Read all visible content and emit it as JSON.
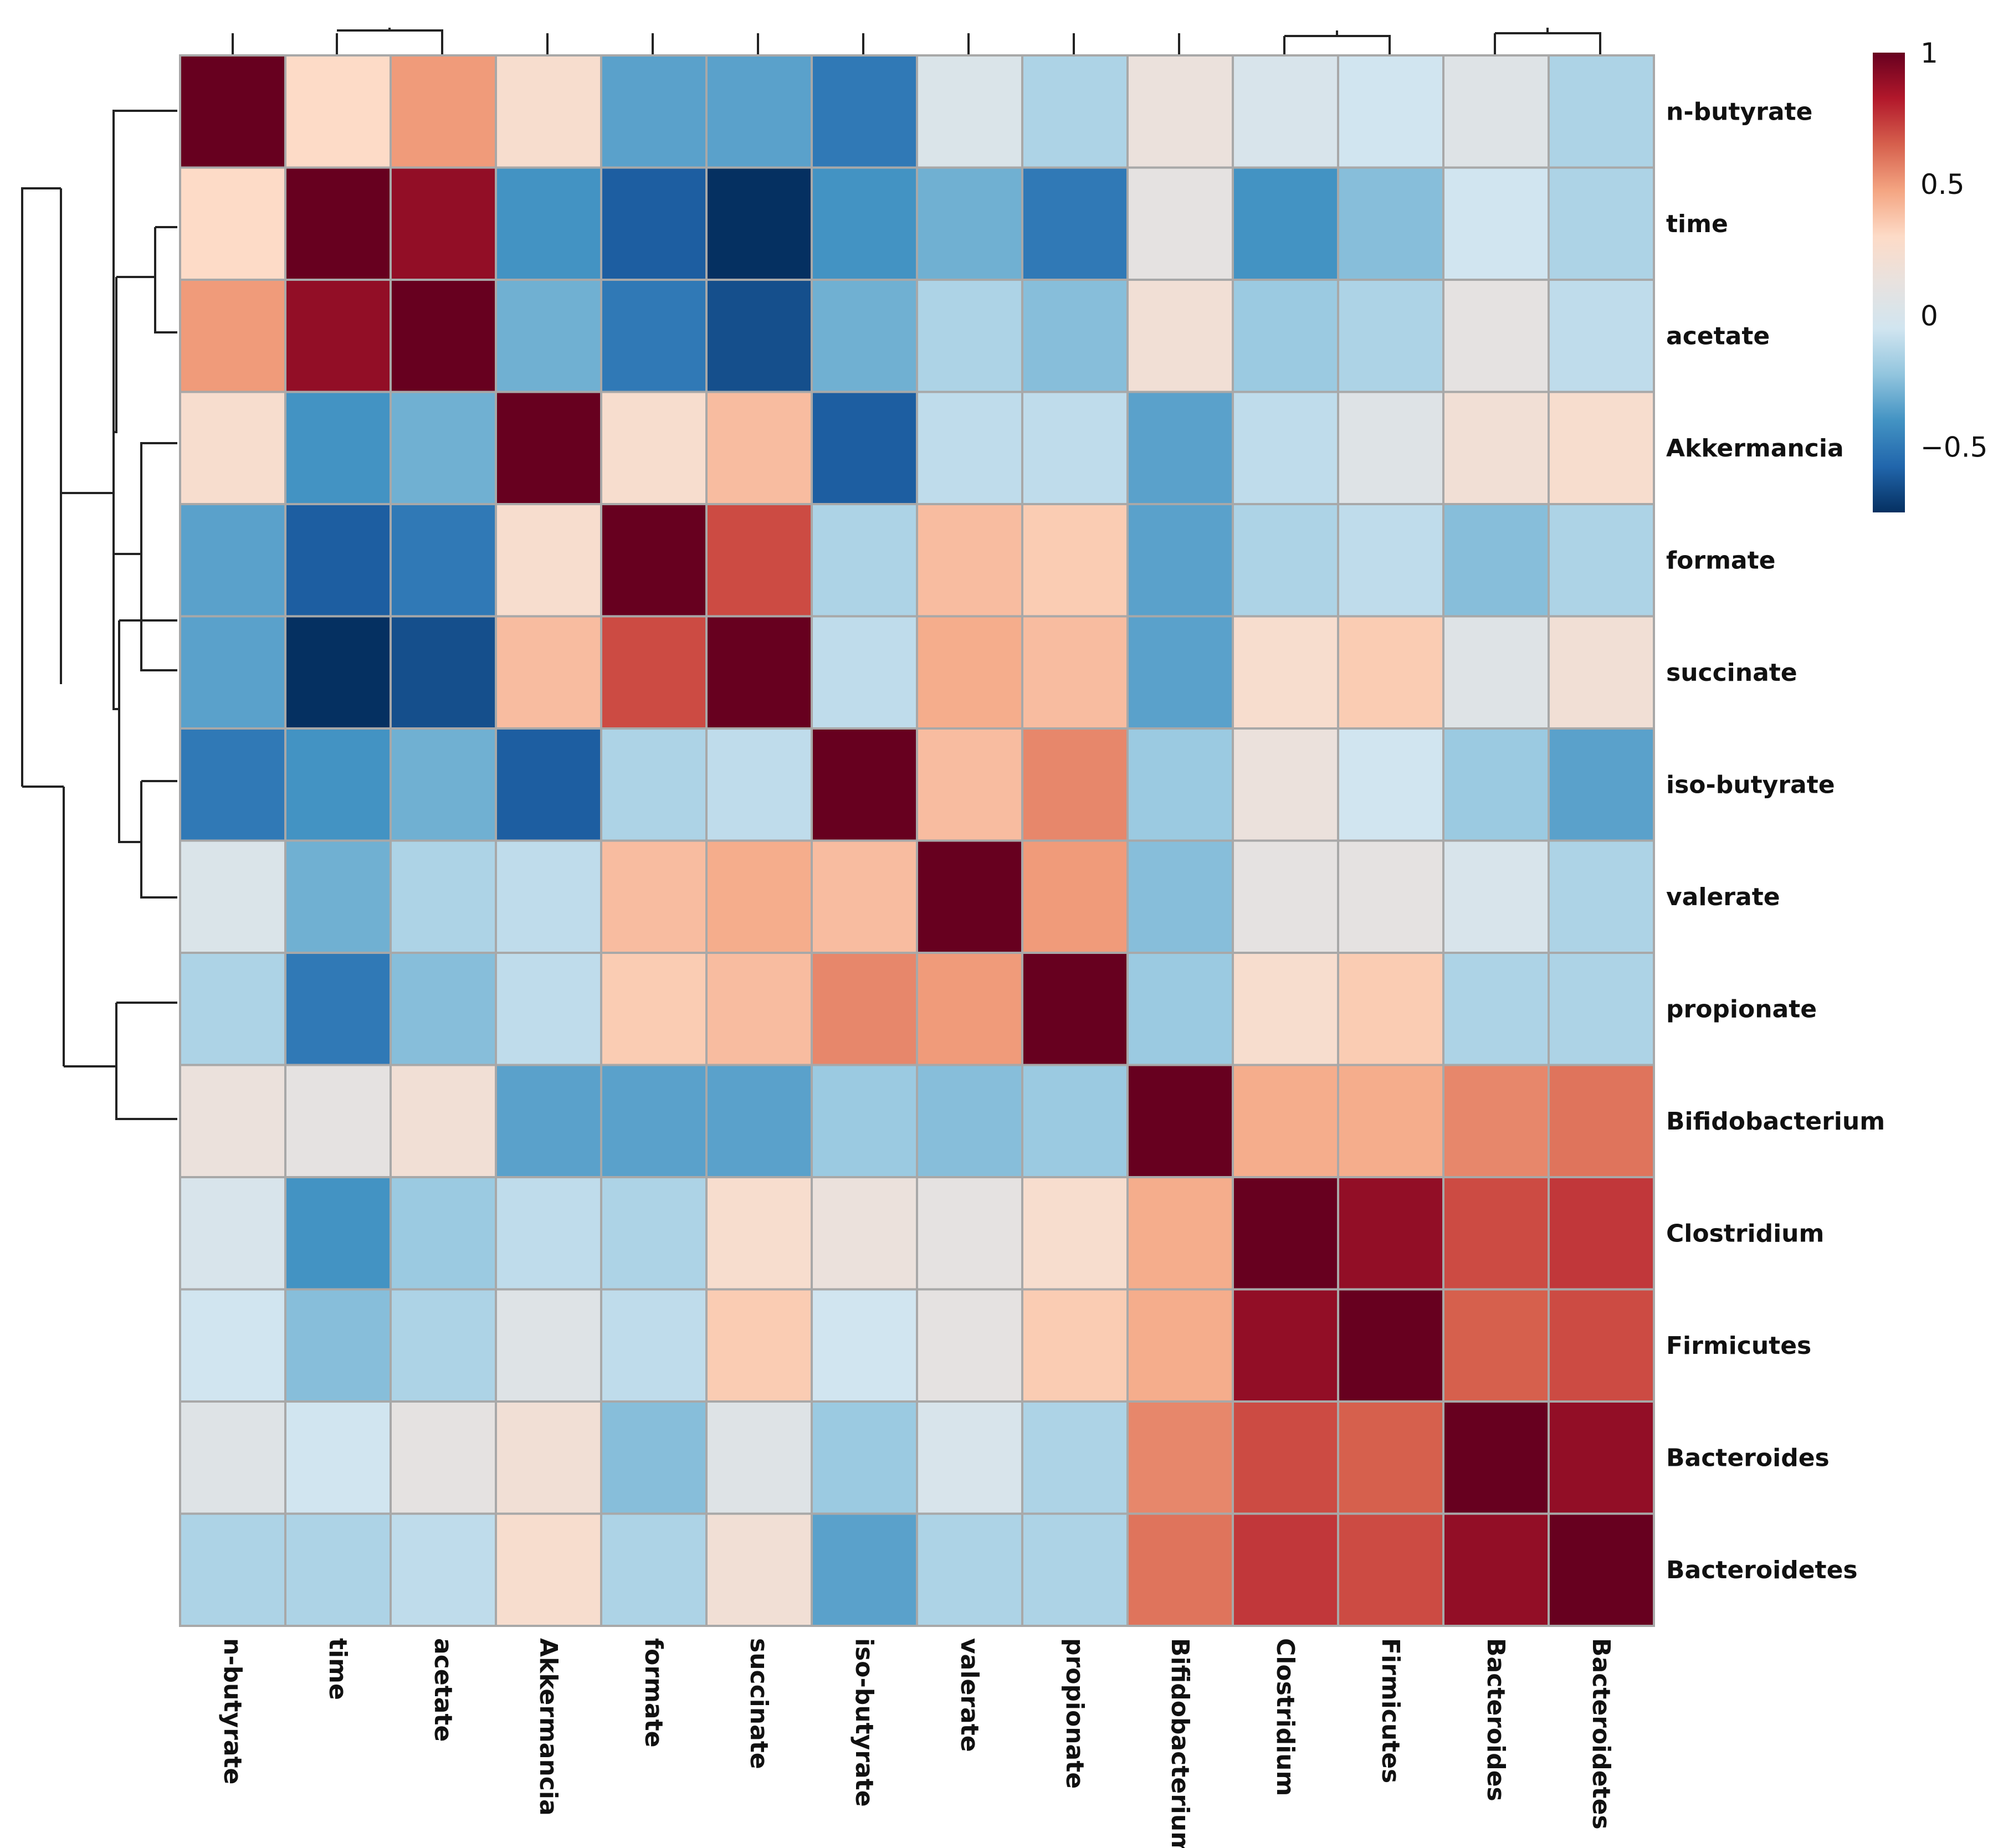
{
  "chart_data": {
    "type": "heatmap",
    "title": "",
    "rows": [
      "n-butyrate",
      "time",
      "acetate",
      "Akkermancia",
      "formate",
      "succinate",
      "iso-butyrate",
      "valerate",
      "propionate",
      "Bifidobacterium",
      "Clostridium",
      "Firmicutes",
      "Bacteroides",
      "Bacteroidetes"
    ],
    "columns": [
      "n-butyrate",
      "time",
      "acetate",
      "Akkermancia",
      "formate",
      "succinate",
      "iso-butyrate",
      "valerate",
      "propionate",
      "Bifidobacterium",
      "Clostridium",
      "Firmicutes",
      "Bacteroides",
      "Bacteroidetes"
    ],
    "values": [
      [
        1.0,
        0.3,
        0.5,
        0.25,
        -0.35,
        -0.35,
        -0.5,
        0.02,
        -0.15,
        0.15,
        0.0,
        -0.05,
        0.05,
        -0.15
      ],
      [
        0.3,
        1.0,
        0.9,
        -0.4,
        -0.6,
        -0.75,
        -0.4,
        -0.3,
        -0.5,
        0.1,
        -0.4,
        -0.25,
        -0.05,
        -0.15
      ],
      [
        0.5,
        0.9,
        1.0,
        -0.3,
        -0.5,
        -0.65,
        -0.3,
        -0.15,
        -0.25,
        0.2,
        -0.2,
        -0.15,
        0.1,
        -0.1
      ],
      [
        0.25,
        -0.4,
        -0.3,
        1.0,
        0.25,
        0.4,
        -0.6,
        -0.1,
        -0.1,
        -0.35,
        -0.1,
        0.05,
        0.2,
        0.25
      ],
      [
        -0.35,
        -0.6,
        -0.5,
        0.25,
        1.0,
        0.7,
        -0.15,
        0.4,
        0.35,
        -0.35,
        -0.15,
        -0.1,
        -0.25,
        -0.15
      ],
      [
        -0.35,
        -0.75,
        -0.65,
        0.4,
        0.7,
        1.0,
        -0.1,
        0.45,
        0.4,
        -0.35,
        0.25,
        0.35,
        0.05,
        0.2
      ],
      [
        -0.5,
        -0.4,
        -0.3,
        -0.6,
        -0.15,
        -0.1,
        1.0,
        0.4,
        0.55,
        -0.2,
        0.15,
        -0.05,
        -0.2,
        -0.35
      ],
      [
        0.02,
        -0.3,
        -0.15,
        -0.1,
        0.4,
        0.45,
        0.4,
        1.0,
        0.5,
        -0.25,
        0.1,
        0.1,
        0.0,
        -0.15
      ],
      [
        -0.15,
        -0.5,
        -0.25,
        -0.1,
        0.35,
        0.4,
        0.55,
        0.5,
        1.0,
        -0.2,
        0.25,
        0.35,
        -0.15,
        -0.15
      ],
      [
        0.15,
        0.1,
        0.2,
        -0.35,
        -0.35,
        -0.35,
        -0.2,
        -0.25,
        -0.2,
        1.0,
        0.45,
        0.45,
        0.55,
        0.6
      ],
      [
        0.0,
        -0.4,
        -0.2,
        -0.1,
        -0.15,
        0.25,
        0.15,
        0.1,
        0.25,
        0.45,
        1.0,
        0.9,
        0.7,
        0.75
      ],
      [
        -0.05,
        -0.25,
        -0.15,
        0.05,
        -0.1,
        0.35,
        -0.05,
        0.1,
        0.35,
        0.45,
        0.9,
        1.0,
        0.65,
        0.7
      ],
      [
        0.05,
        -0.05,
        0.1,
        0.2,
        -0.25,
        0.05,
        -0.2,
        0.0,
        -0.15,
        0.55,
        0.7,
        0.65,
        1.0,
        0.9
      ],
      [
        -0.15,
        -0.15,
        -0.1,
        0.25,
        -0.15,
        0.2,
        -0.35,
        -0.15,
        -0.15,
        0.6,
        0.75,
        0.7,
        0.9,
        1.0
      ]
    ],
    "colorbar": {
      "min": -0.75,
      "max": 1.0,
      "ticks": [
        {
          "value": 1,
          "label": "1"
        },
        {
          "value": 0.5,
          "label": "0.5"
        },
        {
          "value": 0,
          "label": "0"
        },
        {
          "value": -0.5,
          "label": "−0.5"
        }
      ],
      "colors": [
        "#053061",
        "#2166ac",
        "#4393c3",
        "#92c5de",
        "#d1e5f0",
        "#e8e2df",
        "#fddbc7",
        "#f4a582",
        "#d6604d",
        "#b2182b",
        "#67001f"
      ]
    },
    "row_dendrogram": "hierarchical clustering of rows",
    "column_dendrogram": "hierarchical clustering of columns",
    "legend_position": "top-right"
  }
}
